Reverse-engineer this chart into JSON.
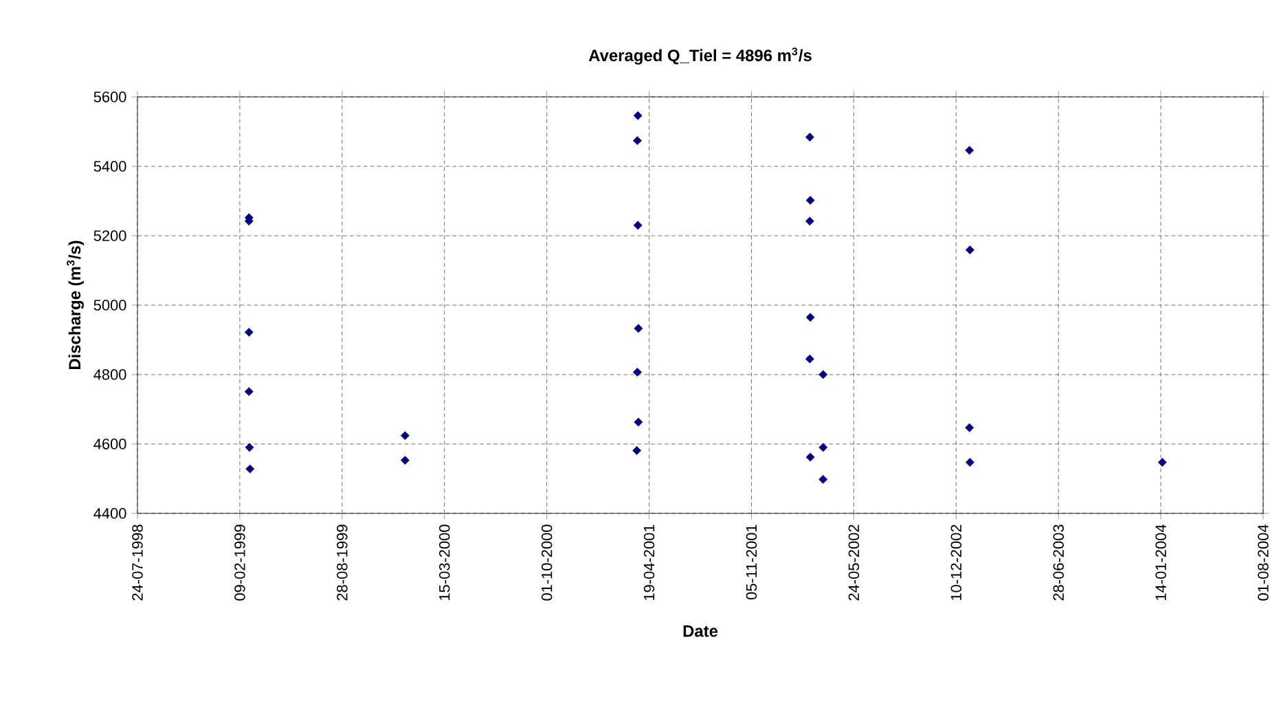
{
  "chart_data": {
    "type": "scatter",
    "title": "Averaged Q_Tiel = 4896 m$^{3}$/s",
    "xlabel": "Date",
    "ylabel": "Discharge (m$^{3}$/s)",
    "series": [
      {
        "color": "#000080",
        "marker": "diamond",
        "x": [
          "1999-02-27",
          "1999-02-27",
          "1999-02-27",
          "1999-02-27",
          "1999-02-28",
          "1999-03-01",
          "1999-12-29",
          "1999-12-29",
          "2001-03-28",
          "2001-03-27",
          "2001-03-28",
          "2001-03-29",
          "2001-03-27",
          "2001-03-29",
          "2001-03-26",
          "2002-02-27",
          "2002-02-28",
          "2002-02-27",
          "2002-02-28",
          "2002-02-27",
          "2002-03-25",
          "2002-03-25",
          "2002-02-28",
          "2002-03-25",
          "2003-01-05",
          "2003-01-06",
          "2003-01-05",
          "2003-01-06",
          "2004-01-17"
        ],
        "values": [
          5252,
          5242,
          4922,
          4751,
          4590,
          4528,
          4624,
          4553,
          5546,
          5474,
          5230,
          4933,
          4807,
          4663,
          4581,
          5484,
          5302,
          5242,
          4965,
          4845,
          4800,
          4590,
          4562,
          4498,
          5446,
          5159,
          4647,
          4547,
          4547
        ]
      }
    ],
    "xlim": [
      "1998-07-24",
      "2004-08-01"
    ],
    "xticks": [
      {
        "value": "1998-07-24",
        "label": "24-07-1998"
      },
      {
        "value": "1999-02-09",
        "label": "09-02-1999"
      },
      {
        "value": "1999-08-28",
        "label": "28-08-1999"
      },
      {
        "value": "2000-03-15",
        "label": "15-03-2000"
      },
      {
        "value": "2000-10-01",
        "label": "01-10-2000"
      },
      {
        "value": "2001-04-19",
        "label": "19-04-2001"
      },
      {
        "value": "2001-11-05",
        "label": "05-11-2001"
      },
      {
        "value": "2002-05-24",
        "label": "24-05-2002"
      },
      {
        "value": "2002-12-10",
        "label": "10-12-2002"
      },
      {
        "value": "2003-06-28",
        "label": "28-06-2003"
      },
      {
        "value": "2004-01-14",
        "label": "14-01-2004"
      },
      {
        "value": "2004-08-01",
        "label": "01-08-2004"
      }
    ],
    "ylim": [
      4400,
      5600
    ],
    "yticks": [
      4400,
      4600,
      4800,
      5000,
      5200,
      5400,
      5600
    ],
    "grid": true
  }
}
